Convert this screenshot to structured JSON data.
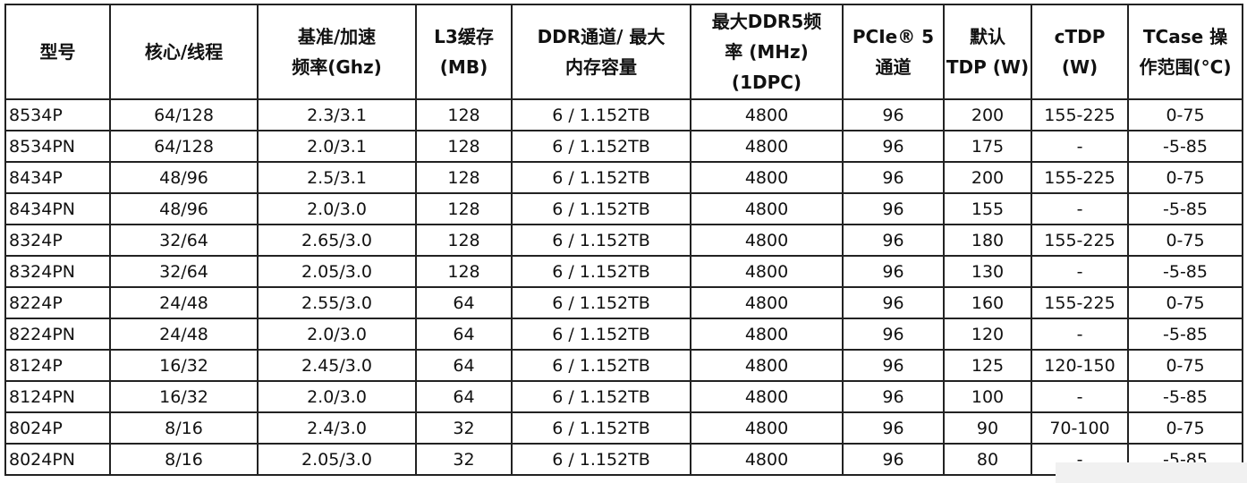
{
  "headers": [
    "型号",
    "核心/线程",
    "基准/加速\n频率(Ghz)",
    "L3缓存\n(MB)",
    "DDR通道/ 最大\n内存容量",
    "最大DDR5频\n率 (MHz)\n(1DPC)",
    "PCIe® 5\n通道",
    "默认\nTDP (W)",
    "cTDP\n(W)",
    "TCase 操\n作范围(°C)"
  ],
  "rows": [
    [
      "8534P",
      "64/128",
      "2.3/3.1",
      "128",
      "6 / 1.152TB",
      "4800",
      "96",
      "200",
      "155-225",
      "0-75"
    ],
    [
      "8534PN",
      "64/128",
      "2.0/3.1",
      "128",
      "6 / 1.152TB",
      "4800",
      "96",
      "175",
      "-",
      "-5-85"
    ],
    [
      "8434P",
      "48/96",
      "2.5/3.1",
      "128",
      "6 / 1.152TB",
      "4800",
      "96",
      "200",
      "155-225",
      "0-75"
    ],
    [
      "8434PN",
      "48/96",
      "2.0/3.0",
      "128",
      "6 / 1.152TB",
      "4800",
      "96",
      "155",
      "-",
      "-5-85"
    ],
    [
      "8324P",
      "32/64",
      "2.65/3.0",
      "128",
      "6 / 1.152TB",
      "4800",
      "96",
      "180",
      "155-225",
      "0-75"
    ],
    [
      "8324PN",
      "32/64",
      "2.05/3.0",
      "128",
      "6 / 1.152TB",
      "4800",
      "96",
      "130",
      "-",
      "-5-85"
    ],
    [
      "8224P",
      "24/48",
      "2.55/3.0",
      "64",
      "6 / 1.152TB",
      "4800",
      "96",
      "160",
      "155-225",
      "0-75"
    ],
    [
      "8224PN",
      "24/48",
      "2.0/3.0",
      "64",
      "6 / 1.152TB",
      "4800",
      "96",
      "120",
      "-",
      "-5-85"
    ],
    [
      "8124P",
      "16/32",
      "2.45/3.0",
      "64",
      "6 / 1.152TB",
      "4800",
      "96",
      "125",
      "120-150",
      "0-75"
    ],
    [
      "8124PN",
      "16/32",
      "2.0/3.0",
      "64",
      "6 / 1.152TB",
      "4800",
      "96",
      "100",
      "-",
      "-5-85"
    ],
    [
      "8024P",
      "8/16",
      "2.4/3.0",
      "32",
      "6 / 1.152TB",
      "4800",
      "96",
      "90",
      "70-100",
      "0-75"
    ],
    [
      "8024PN",
      "8/16",
      "2.05/3.0",
      "32",
      "6 / 1.152TB",
      "4800",
      "96",
      "80",
      "-",
      "-5-85"
    ]
  ]
}
